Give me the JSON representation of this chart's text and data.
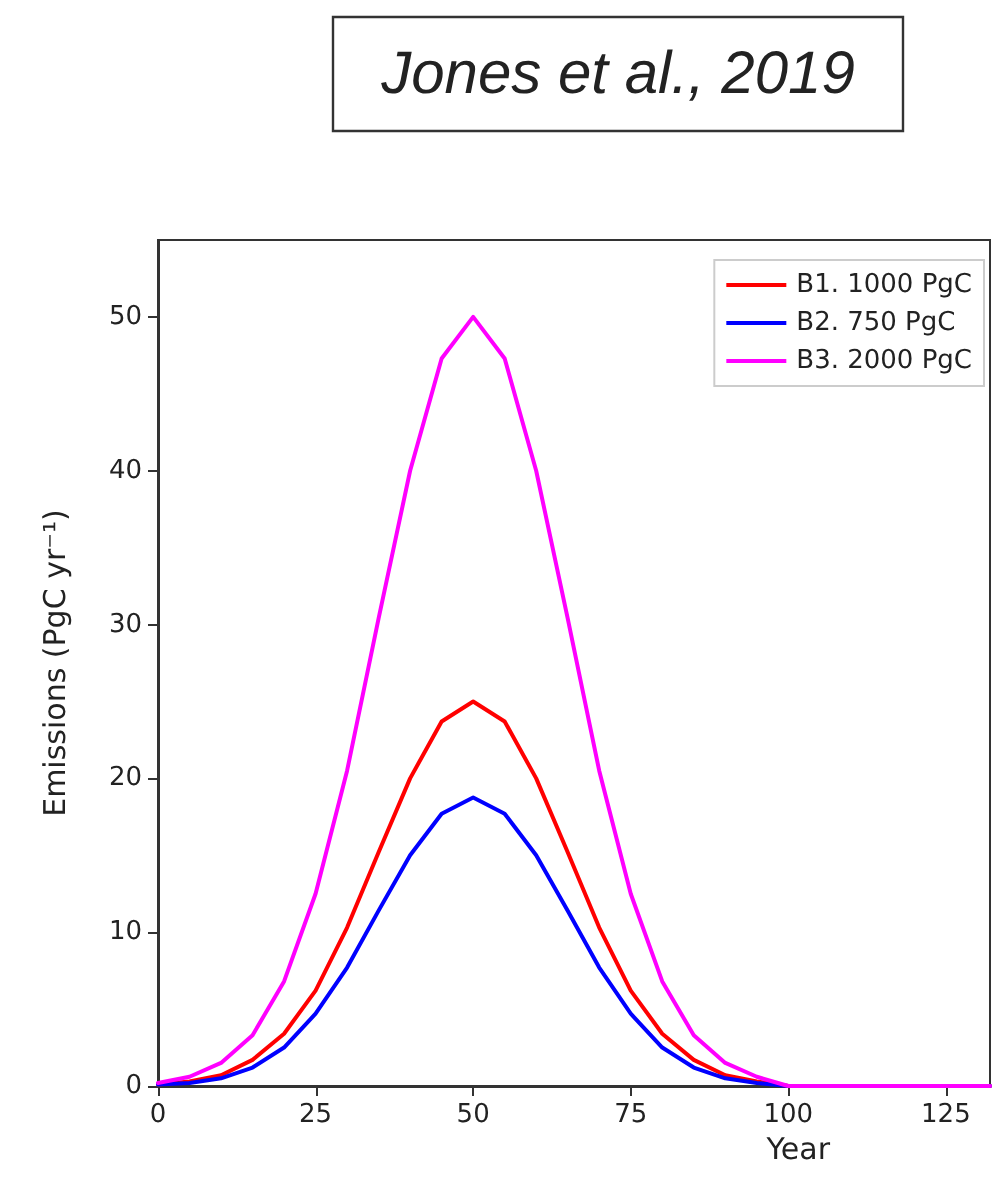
{
  "chart_data": {
    "type": "line",
    "title": "Jones et al., 2019",
    "xlabel": "Year",
    "ylabel": "Emissions (PgC yr⁻¹)",
    "x": [
      0,
      5,
      10,
      15,
      20,
      25,
      30,
      35,
      40,
      45,
      50,
      55,
      60,
      65,
      70,
      75,
      80,
      85,
      90,
      95,
      100,
      132
    ],
    "series": [
      {
        "name": "B1. 1000 PgC",
        "color": "#ff0000",
        "values": [
          0.1,
          0.3,
          0.7,
          1.7,
          3.4,
          6.2,
          10.3,
          15.2,
          20,
          23.7,
          25,
          23.7,
          20,
          15.2,
          10.3,
          6.2,
          3.4,
          1.7,
          0.7,
          0.3,
          0,
          0
        ]
      },
      {
        "name": "B2. 750 PgC",
        "color": "#0000ff",
        "values": [
          0.1,
          0.2,
          0.5,
          1.2,
          2.5,
          4.7,
          7.7,
          11.4,
          15,
          17.7,
          18.75,
          17.7,
          15,
          11.4,
          7.7,
          4.7,
          2.5,
          1.2,
          0.5,
          0.2,
          0,
          0
        ]
      },
      {
        "name": "B3. 2000 PgC",
        "color": "#ff00ff",
        "values": [
          0.2,
          0.6,
          1.5,
          3.3,
          6.8,
          12.5,
          20.5,
          30.4,
          40,
          47.3,
          50,
          47.3,
          40,
          30.4,
          20.5,
          12.5,
          6.8,
          3.3,
          1.5,
          0.6,
          0,
          0
        ]
      }
    ],
    "xlim": [
      0,
      132
    ],
    "xticks": [
      0,
      25,
      50,
      75,
      100,
      125
    ],
    "ylim": [
      0,
      55
    ],
    "yticks": [
      0,
      10,
      20,
      30,
      40,
      50
    ],
    "grid": false,
    "legend": "top right",
    "marker": "none",
    "line_style": "solid"
  }
}
